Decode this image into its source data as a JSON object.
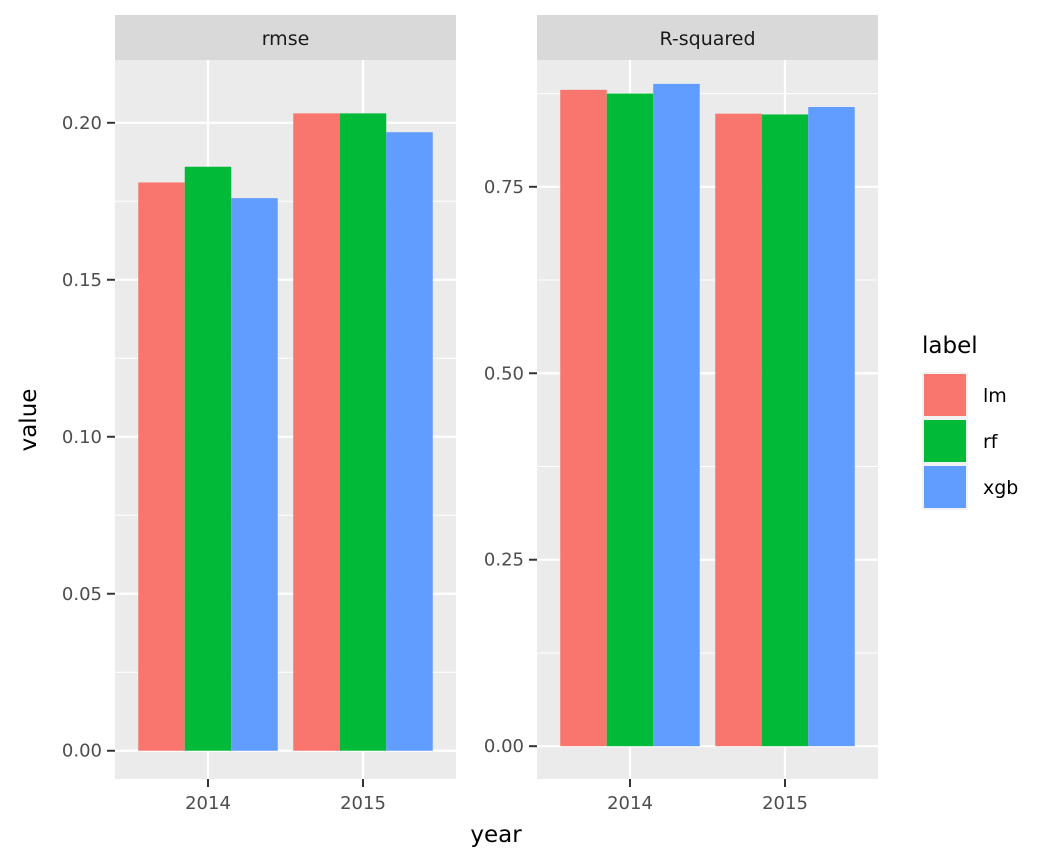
{
  "chart_data": {
    "type": "bar",
    "xlabel": "year",
    "ylabel": "value",
    "categories": [
      "2014",
      "2015"
    ],
    "legend": {
      "title": "label",
      "position": "right",
      "entries": [
        "lm",
        "rf",
        "xgb"
      ]
    },
    "series_colors": {
      "lm": "#F8766D",
      "rf": "#00BA38",
      "xgb": "#619CFF"
    },
    "grid": true,
    "panels": [
      {
        "strip": "rmse",
        "ylim": [
          -0.009,
          0.22
        ],
        "yticks": [
          0.0,
          0.05,
          0.1,
          0.15,
          0.2
        ],
        "ytick_labels": [
          "0.00",
          "0.05",
          "0.10",
          "0.15",
          "0.20"
        ],
        "series": [
          {
            "name": "lm",
            "values": [
              0.181,
              0.203
            ]
          },
          {
            "name": "rf",
            "values": [
              0.186,
              0.203
            ]
          },
          {
            "name": "xgb",
            "values": [
              0.176,
              0.197
            ]
          }
        ]
      },
      {
        "strip": "R-squared",
        "ylim": [
          -0.044,
          0.92
        ],
        "yticks": [
          0.0,
          0.25,
          0.5,
          0.75
        ],
        "ytick_labels": [
          "0.00",
          "0.25",
          "0.50",
          "0.75"
        ],
        "series": [
          {
            "name": "lm",
            "values": [
              0.88,
              0.848
            ]
          },
          {
            "name": "rf",
            "values": [
              0.875,
              0.847
            ]
          },
          {
            "name": "xgb",
            "values": [
              0.888,
              0.857
            ]
          }
        ]
      }
    ]
  }
}
